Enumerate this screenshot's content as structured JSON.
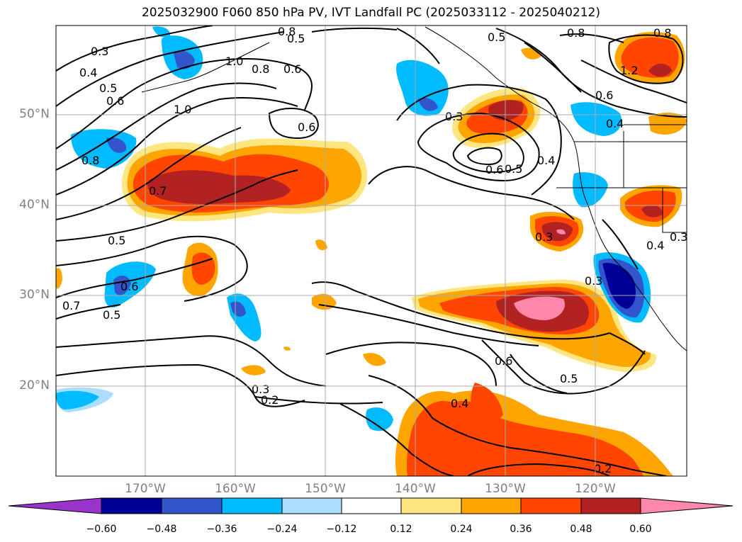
{
  "title": "2025032900 F060 850 hPa PV, IVT Landfall PC (2025033112 - 2025040212)",
  "lat_labels": [
    "50°N",
    "40°N",
    "30°N",
    "20°N"
  ],
  "lon_labels": [
    "170°W",
    "160°W",
    "150°W",
    "140°W",
    "130°W",
    "120°W"
  ],
  "colorbar": {
    "ticks": [
      "−0.60",
      "−0.48",
      "−0.36",
      "−0.24",
      "−0.12",
      "0.12",
      "0.24",
      "0.36",
      "0.48",
      "0.60"
    ],
    "colors": [
      "#9933cc",
      "#000099",
      "#3355cc",
      "#00bbff",
      "#aaddff",
      "#ffffff",
      "#ffe680",
      "#ffa500",
      "#ff4500",
      "#b22222",
      "#ff88aa"
    ]
  },
  "contour_labels": [
    "0.3",
    "0.4",
    "0.5",
    "0.6",
    "0.8",
    "1.0",
    "0.6",
    "0.8",
    "1.0",
    "0.8",
    "0.7",
    "0.6",
    "0.5",
    "0.3",
    "0.6",
    "0.5",
    "0.4",
    "0.8",
    "1.2",
    "0.8",
    "0.6",
    "0.4",
    "0.5",
    "0.6",
    "0.5",
    "0.7",
    "0.3",
    "0.3",
    "0.3",
    "0.4",
    "0.3",
    "0.6",
    "0.5",
    "0.4",
    "0.2",
    "0.2",
    "0.5"
  ]
}
